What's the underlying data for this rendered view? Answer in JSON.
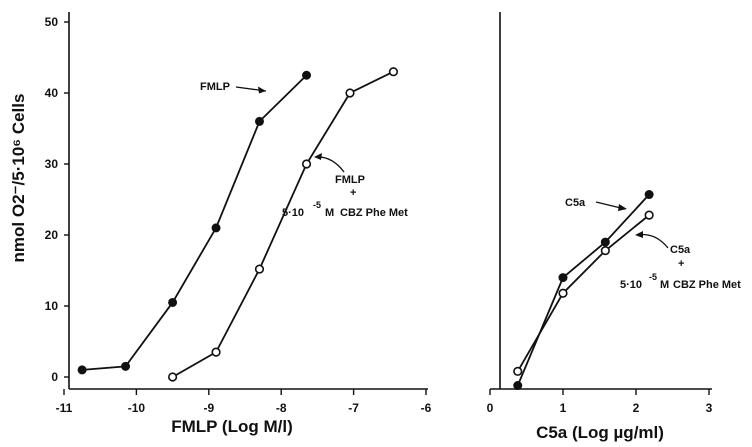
{
  "chart_data": [
    {
      "type": "line",
      "xlabel": "FMLP (Log M/l)",
      "ylabel": "nmol O2⁻/5·10⁶ Cells",
      "xlim": [
        -11,
        -6
      ],
      "ylim": [
        0,
        50
      ],
      "x_ticks": [
        "-11",
        "-10",
        "-9",
        "-8",
        "-7",
        "-6"
      ],
      "y_ticks": [
        "0",
        "10",
        "20",
        "30",
        "40",
        "50"
      ],
      "series": [
        {
          "name": "FMLP",
          "marker": "filled",
          "x": [
            -10.75,
            -10.15,
            -9.5,
            -8.9,
            -8.3,
            -7.65
          ],
          "y": [
            1,
            1.5,
            10.5,
            21,
            36,
            42.5
          ]
        },
        {
          "name": "FMLP + 5·10⁻⁵ M CBZ Phe Met",
          "marker": "open",
          "x": [
            -9.5,
            -8.9,
            -8.3,
            -7.65,
            -7.05,
            -6.45
          ],
          "y": [
            0,
            3.5,
            15.2,
            30,
            40,
            43
          ]
        }
      ],
      "annotations": [
        {
          "label": "FMLP",
          "target": "series-1"
        },
        {
          "label_parts": [
            "FMLP",
            "+",
            "5·10",
            "-5",
            "M",
            "CBZ Phe Met"
          ],
          "target": "series-2"
        }
      ]
    },
    {
      "type": "line",
      "xlabel": "C5a (Log µg/ml)",
      "xlim": [
        0,
        3
      ],
      "ylim": [
        0,
        50
      ],
      "x_ticks": [
        "0",
        "1",
        "2",
        "3"
      ],
      "series": [
        {
          "name": "C5a",
          "marker": "filled",
          "x": [
            0.38,
            1.0,
            1.58,
            2.18
          ],
          "y": [
            -1.2,
            14,
            19,
            25.7
          ]
        },
        {
          "name": "C5a + 5·10⁻⁵ M CBZ Phe Met",
          "marker": "open",
          "x": [
            0.38,
            1.0,
            1.58,
            2.18
          ],
          "y": [
            0.8,
            11.8,
            17.8,
            22.8
          ]
        }
      ],
      "annotations": [
        {
          "label": "C5a",
          "target": "series-1"
        },
        {
          "label_parts": [
            "C5a",
            "+",
            "5·10",
            "-5",
            "M",
            "CBZ Phe Met"
          ],
          "target": "series-2"
        }
      ]
    }
  ]
}
